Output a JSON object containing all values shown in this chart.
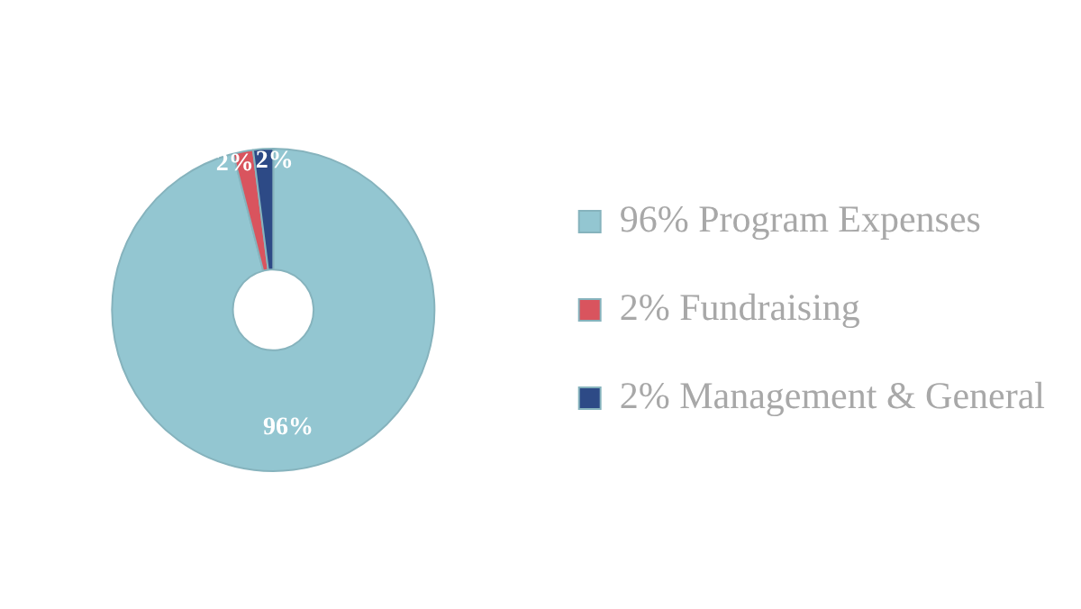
{
  "chart_data": {
    "type": "donut",
    "categories": [
      "96% Program Expenses",
      "2% Fundraising",
      "2% Management & General"
    ],
    "values": [
      96,
      2,
      2
    ],
    "colors": [
      "#93c6d1",
      "#d9545e",
      "#2d4a86"
    ],
    "value_labels": [
      "96%",
      "2%",
      "2%"
    ],
    "legend": "right"
  }
}
